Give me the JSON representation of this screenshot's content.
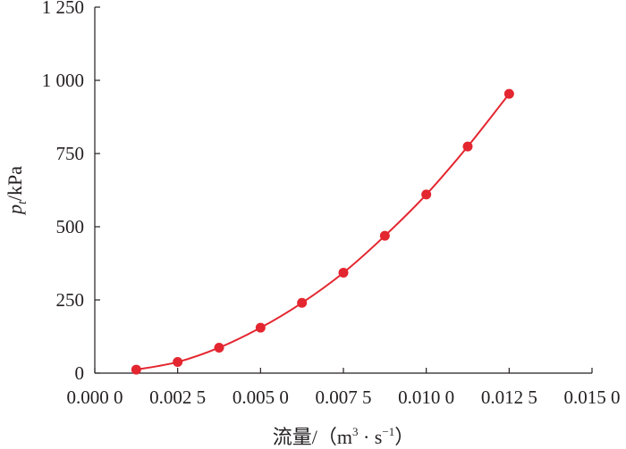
{
  "chart_data": {
    "type": "scatter",
    "title": "",
    "xlabel": {
      "main": "流量/（m",
      "sup1": "3",
      "mid": " · s",
      "sup2": "−1",
      "end": "）"
    },
    "ylabel": {
      "main": "p",
      "sub": "t",
      "rest": "/kPa"
    },
    "xlim": [
      0,
      0.015
    ],
    "ylim": [
      0,
      1250
    ],
    "x_ticks": [
      {
        "value": 0.0,
        "label": "0.000 0"
      },
      {
        "value": 0.0025,
        "label": "0.002 5"
      },
      {
        "value": 0.005,
        "label": "0.005 0"
      },
      {
        "value": 0.0075,
        "label": "0.007 5"
      },
      {
        "value": 0.01,
        "label": "0.010 0"
      },
      {
        "value": 0.0125,
        "label": "0.012 5"
      },
      {
        "value": 0.015,
        "label": "0.015 0"
      }
    ],
    "y_ticks": [
      {
        "value": 0,
        "label": "0"
      },
      {
        "value": 250,
        "label": "250"
      },
      {
        "value": 500,
        "label": "500"
      },
      {
        "value": 750,
        "label": "750"
      },
      {
        "value": 1000,
        "label": "1 000"
      },
      {
        "value": 1250,
        "label": "1 250"
      }
    ],
    "series": [
      {
        "color": "#e3262f",
        "marker": "filled-circle",
        "line": "smooth",
        "x": [
          0.00125,
          0.0025,
          0.00375,
          0.005,
          0.00625,
          0.0075,
          0.00875,
          0.01,
          0.01125,
          0.0125
        ],
        "y": [
          12,
          38,
          87,
          155,
          240,
          343,
          469,
          610,
          774,
          954
        ]
      }
    ],
    "grid": false,
    "legend": "none"
  }
}
